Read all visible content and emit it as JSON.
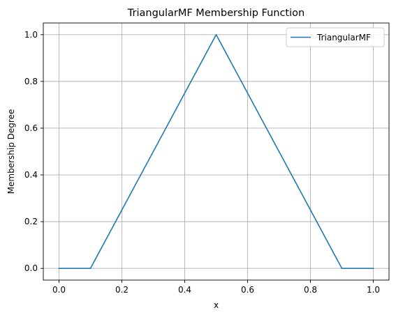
{
  "chart_data": {
    "type": "line",
    "title": "TriangularMF Membership Function",
    "xlabel": "x",
    "ylabel": "Membership Degree",
    "xlim": [
      -0.05,
      1.05
    ],
    "ylim": [
      -0.05,
      1.05
    ],
    "x_ticks": [
      "0.0",
      "0.2",
      "0.4",
      "0.6",
      "0.8",
      "1.0"
    ],
    "y_ticks": [
      "0.0",
      "0.2",
      "0.4",
      "0.6",
      "0.8",
      "1.0"
    ],
    "grid": true,
    "legend_position": "top-right",
    "series": [
      {
        "name": "TriangularMF",
        "color": "#1f77b4",
        "x": [
          0.0,
          0.1,
          0.5,
          0.9,
          1.0
        ],
        "y": [
          0.0,
          0.0,
          1.0,
          0.0,
          0.0
        ]
      }
    ]
  }
}
